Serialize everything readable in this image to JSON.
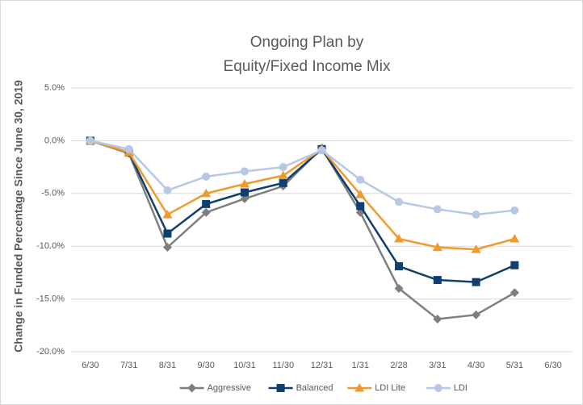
{
  "chart_data": {
    "type": "line",
    "title": [
      "Ongoing Plan by",
      "Equity/Fixed Income Mix"
    ],
    "y_label": "Change in Funded Percentage Since June 30, 2019",
    "categories": [
      "6/30",
      "7/31",
      "8/31",
      "9/30",
      "10/31",
      "11/30",
      "12/31",
      "1/31",
      "2/28",
      "3/31",
      "4/30",
      "5/31",
      "6/30"
    ],
    "series": [
      {
        "name": "Aggressive",
        "color": "#7f7f7f",
        "marker": "diamond",
        "values": [
          0,
          -1.2,
          -10.1,
          -6.8,
          -5.5,
          -4.3,
          -0.7,
          -6.8,
          -14.0,
          -16.9,
          -16.5,
          -14.4,
          null
        ]
      },
      {
        "name": "Balanced",
        "color": "#0f3f6e",
        "marker": "square",
        "values": [
          0,
          -1.1,
          -8.8,
          -6.0,
          -4.9,
          -4.0,
          -0.8,
          -6.2,
          -11.9,
          -13.2,
          -13.4,
          -11.8,
          null
        ]
      },
      {
        "name": "LDI Lite",
        "color": "#f09a2e",
        "marker": "triangle",
        "values": [
          0,
          -1.1,
          -7.0,
          -5.0,
          -4.1,
          -3.3,
          -0.8,
          -5.1,
          -9.3,
          -10.1,
          -10.3,
          -9.3,
          null
        ]
      },
      {
        "name": "LDI",
        "color": "#b7c8e6",
        "marker": "circle",
        "values": [
          0,
          -0.8,
          -4.7,
          -3.4,
          -2.9,
          -2.5,
          -0.9,
          -3.7,
          -5.8,
          -6.5,
          -7.0,
          -6.6,
          null
        ]
      }
    ],
    "ylim": [
      -20,
      5
    ],
    "yticks": [
      {
        "value": -20,
        "label": "-20.0%"
      },
      {
        "value": -15,
        "label": "-15.0%"
      },
      {
        "value": -10,
        "label": "-10.0%"
      },
      {
        "value": -5,
        "label": "-5.0%"
      },
      {
        "value": 0,
        "label": "0.0%"
      },
      {
        "value": 5,
        "label": "5.0%"
      }
    ],
    "grid": true,
    "legend": "bottom"
  }
}
